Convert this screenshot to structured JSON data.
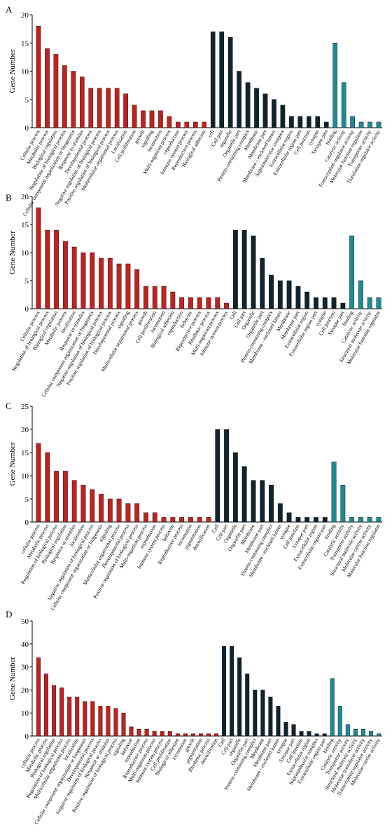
{
  "colors": {
    "bio": "#c0221f",
    "cell": "#0f2330",
    "mol": "#1e8a94",
    "edge": "#000000"
  },
  "chart_data": [
    {
      "type": "bar",
      "panel": "A",
      "ylabel": "Gene Number",
      "ylim": [
        0,
        20
      ],
      "yticks": [
        0,
        5,
        10,
        15,
        20
      ],
      "groups": [
        {
          "color": "#c0221f",
          "categories": [
            "Cellular process",
            "Metabolic process",
            "Biological regulation",
            "Regulation of biological process",
            "Cellular component organization or biogenesis",
            "Response to stimulus",
            "Developmental process",
            "Negative regulation of biological process",
            "Positive regulation of biological process",
            "Multicellular organismal process",
            "Localization",
            "Cell proliferation",
            "growth",
            "signaling",
            "locomotion",
            "Multi-organism process",
            "reproduction",
            "Immune system process",
            "Reproductive process",
            "Biological adhesion"
          ],
          "values": [
            18,
            14,
            13,
            11,
            10,
            9,
            7,
            7,
            7,
            7,
            6,
            4,
            3,
            3,
            3,
            2,
            1,
            1,
            1,
            1
          ]
        },
        {
          "color": "#0f2330",
          "categories": [
            "cell",
            "Cell part",
            "organelle",
            "Organelle part",
            "Protein-containing complex",
            "Membrane",
            "Membrane part",
            "Membrane - enclosed lumen",
            "Supramolecular complex",
            "Extracellular region",
            "Extracellular region part",
            "Cell junction",
            "synapse",
            "Synapse part"
          ],
          "values": [
            17,
            17,
            16,
            10,
            8,
            7,
            6,
            5,
            4,
            2,
            2,
            2,
            2,
            1
          ]
        },
        {
          "color": "#1e8a94",
          "categories": [
            "binding",
            "Catalytic activity",
            "Transcription regulator activity",
            "Molecular function regulator",
            "Transporter activity",
            "Translation regulator activity"
          ],
          "values": [
            15,
            8,
            2,
            1,
            1,
            1
          ]
        }
      ]
    },
    {
      "type": "bar",
      "panel": "B",
      "ylabel": "Gene Number",
      "ylim": [
        0,
        20
      ],
      "yticks": [
        0,
        5,
        10,
        15,
        20
      ],
      "groups": [
        {
          "color": "#c0221f",
          "categories": [
            "Cellular process",
            "Regulation of biological process",
            "Biological regulation",
            "Metabolic process",
            "localization",
            "Response to stimulus",
            "Cellular component organization or biogenesis",
            "Negative regulation of biological process",
            "Positive regulation of biological process",
            "Developmental process",
            "signaling",
            "Multicellular organismal process",
            "growth",
            "Cell proliferation",
            "locomotion",
            "Biological adhesion",
            "reproduction",
            "behavior",
            "Reproductive process",
            "Rhythmic process",
            "Multi-organism process",
            "Immune system process"
          ],
          "values": [
            18,
            14,
            14,
            12,
            11,
            10,
            10,
            9,
            9,
            8,
            8,
            7,
            4,
            4,
            4,
            3,
            2,
            2,
            2,
            2,
            2,
            1
          ]
        },
        {
          "color": "#0f2330",
          "categories": [
            "Cell",
            "Cell part",
            "Organelle",
            "Organelle part",
            "Protein-containing complex",
            "Membrane - enclosed lumen",
            "Membrane",
            "Membrane part",
            "Extracellular region",
            "Extracellular region part",
            "synapse",
            "Cell junction",
            "Synapse part"
          ],
          "values": [
            14,
            14,
            13,
            9,
            6,
            5,
            5,
            4,
            3,
            2,
            2,
            2,
            1
          ]
        },
        {
          "color": "#1e8a94",
          "categories": [
            "binding",
            "Catalytic activity",
            "Structural molecule activity",
            "Molecular function regulator"
          ],
          "values": [
            13,
            5,
            2,
            2
          ]
        }
      ]
    },
    {
      "type": "bar",
      "panel": "C",
      "ylabel": "Gene Number",
      "ylim": [
        0,
        25
      ],
      "yticks": [
        0,
        5,
        10,
        15,
        20,
        25
      ],
      "groups": [
        {
          "color": "#c0221f",
          "categories": [
            "cellular process",
            "Metabolic process",
            "Regulation of biological process",
            "Biological regulation",
            "Response to stimulus",
            "localization",
            "Negative regulation of biological process",
            "Cellular component organization or biogenesis",
            "signaling",
            "Multicellular organismal process",
            "Developmental process",
            "Positive regulation of biological process",
            "Multi-organism process",
            "reproduction",
            "Immune system process",
            "behavior",
            "Reproductive process",
            "locomotion",
            "pigmentation",
            "detoxification"
          ],
          "values": [
            17,
            15,
            11,
            11,
            9,
            8,
            7,
            6,
            5,
            5,
            4,
            4,
            2,
            2,
            1,
            1,
            1,
            1,
            1,
            1
          ]
        },
        {
          "color": "#0f2330",
          "categories": [
            "Cell",
            "Cell part",
            "Organelle",
            "Organelle part",
            "Membrane",
            "Membrane part",
            "Protein-containing complex",
            "Membrane - enclosed lumen",
            "synapse",
            "Cell junction",
            "Synapse part",
            "Extracellular region",
            "Extracellular region part"
          ],
          "values": [
            20,
            20,
            15,
            12,
            9,
            9,
            8,
            4,
            2,
            1,
            1,
            1,
            1
          ]
        },
        {
          "color": "#1e8a94",
          "categories": [
            "binding",
            "Catalytic activity",
            "Transporter activity",
            "Structural molecule activity",
            "Molecular carrier activity",
            "Molecular function regulator"
          ],
          "values": [
            13,
            8,
            1,
            1,
            1,
            1
          ]
        }
      ]
    },
    {
      "type": "bar",
      "panel": "D",
      "ylabel": "Gene Number",
      "ylim": [
        0,
        50
      ],
      "yticks": [
        0,
        10,
        20,
        30,
        40,
        50
      ],
      "groups": [
        {
          "color": "#c0221f",
          "categories": [
            "cellular process",
            "Metabolic process",
            "Biological regulation",
            "Regulation of biological process",
            "Multicellular organismal process",
            "localization",
            "Cellular component organization or biogenesis",
            "Developmental process",
            "Negative regulation of biological process",
            "Response to stimulus",
            "Positive regulation of biological process",
            "signaling",
            "behavior",
            "reproduction",
            "Reproductive process",
            "Multi-organism process",
            "Immune system process",
            "Cell proliferation",
            "Biological adhesion",
            "locomotion",
            "growth",
            "pigmentation",
            "Rhythmic process",
            "detoxification"
          ],
          "values": [
            34,
            27,
            22,
            21,
            17,
            17,
            15,
            15,
            13,
            13,
            12,
            10,
            4,
            3,
            3,
            2,
            2,
            2,
            1,
            1,
            1,
            1,
            1,
            1
          ]
        },
        {
          "color": "#0f2330",
          "categories": [
            "Cell",
            "Cell part",
            "organelle",
            "Organelle part",
            "Protein-containing complex",
            "Membrane",
            "Membrane part",
            "Membrane - enclosed lumen",
            "synapse",
            "Synapse part",
            "Cell junction",
            "Extracellular region",
            "Supramolecular complex",
            "Extracellular region part"
          ],
          "values": [
            39,
            39,
            34,
            27,
            20,
            20,
            17,
            13,
            6,
            5,
            2,
            2,
            1,
            1
          ]
        },
        {
          "color": "#1e8a94",
          "categories": [
            "binding",
            "Catalytic activity",
            "Transporter activity",
            "Structural molecule activity",
            "Molecular transducer activity",
            "Transcription regulator activity",
            "Molecular carrier activity"
          ],
          "values": [
            25,
            13,
            5,
            3,
            3,
            2,
            1
          ]
        }
      ]
    }
  ]
}
